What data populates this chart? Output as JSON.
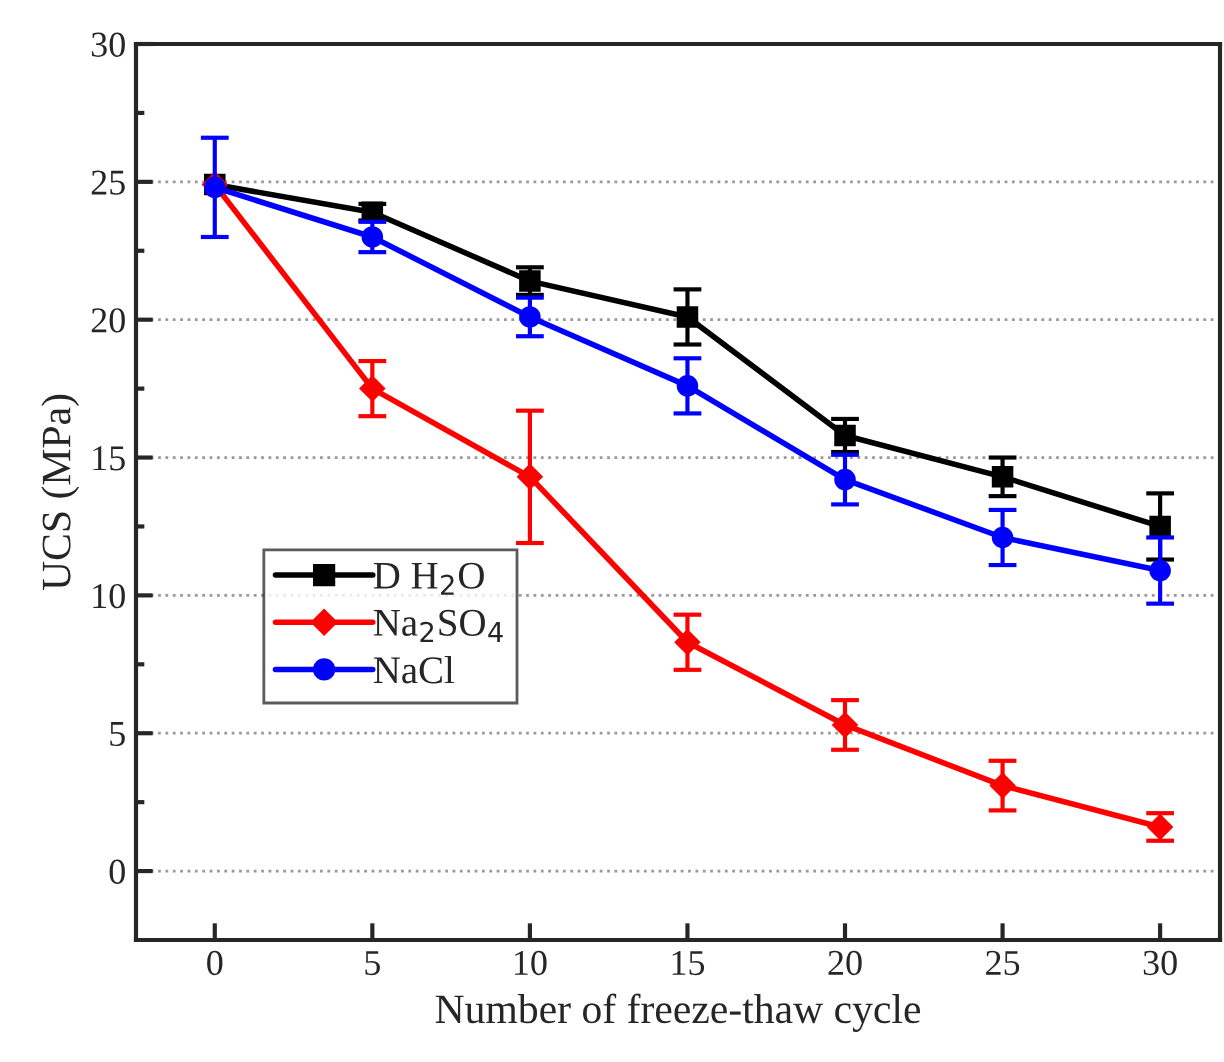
{
  "chart_data": {
    "type": "line",
    "xlabel": "Number of freeze-thaw cycle",
    "ylabel": "UCS (MPa)",
    "x": [
      0,
      5,
      10,
      15,
      20,
      25,
      30
    ],
    "series": [
      {
        "name": "D H$_{2}$O",
        "color": "#000000",
        "marker": "square",
        "values": [
          24.9,
          23.9,
          21.4,
          20.1,
          15.8,
          14.3,
          12.5
        ],
        "errors": [
          null,
          0.3,
          0.5,
          1.0,
          0.6,
          0.7,
          1.2
        ]
      },
      {
        "name": "Na$_{2}$SO$_{4}$",
        "color": "#ff0000",
        "marker": "diamond",
        "values": [
          24.9,
          17.5,
          14.3,
          8.3,
          5.3,
          3.1,
          1.6
        ],
        "errors": [
          null,
          1.0,
          2.4,
          1.0,
          0.9,
          0.9,
          0.5
        ]
      },
      {
        "name": "NaCl",
        "color": "#0000ff",
        "marker": "circle",
        "values": [
          24.8,
          23.0,
          20.1,
          17.6,
          14.2,
          12.1,
          10.9
        ],
        "errors": [
          1.8,
          0.55,
          0.7,
          1.0,
          0.9,
          1.0,
          1.2
        ]
      }
    ],
    "xlim": [
      -2.5,
      31.9
    ],
    "ylim": [
      -2.5,
      30
    ],
    "xticks": [
      0,
      5,
      10,
      15,
      20,
      25,
      30
    ],
    "yticks": [
      0,
      5,
      10,
      15,
      20,
      25,
      30
    ],
    "grid": "y",
    "legend": "center left",
    "line_style": "solid"
  }
}
